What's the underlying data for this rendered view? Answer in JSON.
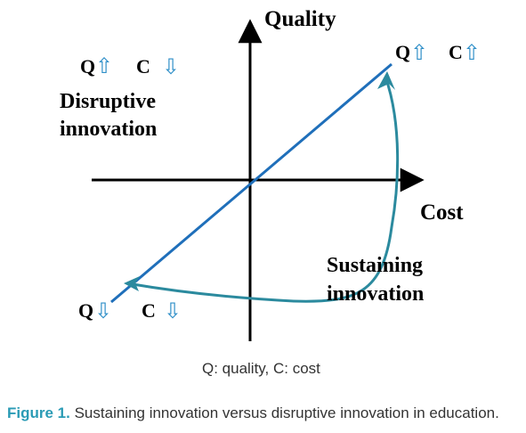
{
  "axes": {
    "y_label": "Quality",
    "x_label": "Cost"
  },
  "quadrants": {
    "top_left": {
      "q": "Q",
      "q_arrow": "⇧",
      "c": "C",
      "c_arrow": "⇩"
    },
    "top_right": {
      "q": "Q",
      "q_arrow": "⇧",
      "c": "C",
      "c_arrow": "⇧"
    },
    "bottom_left": {
      "q": "Q",
      "q_arrow": "⇩",
      "c": "C",
      "c_arrow": "⇩"
    }
  },
  "labels": {
    "disruptive_line1": "Disruptive",
    "disruptive_line2": "innovation",
    "sustaining_line1": "Sustaining",
    "sustaining_line2": "innovation"
  },
  "legend": "Q: quality, C: cost",
  "caption": {
    "label": "Figure 1.",
    "text": "Sustaining innovation versus disruptive innovation in education."
  },
  "colors": {
    "line": "#1f6fba",
    "curve": "#2b8a9e",
    "arrow_glyph": "#2f8fc8",
    "caption_label": "#2a9bb5"
  }
}
